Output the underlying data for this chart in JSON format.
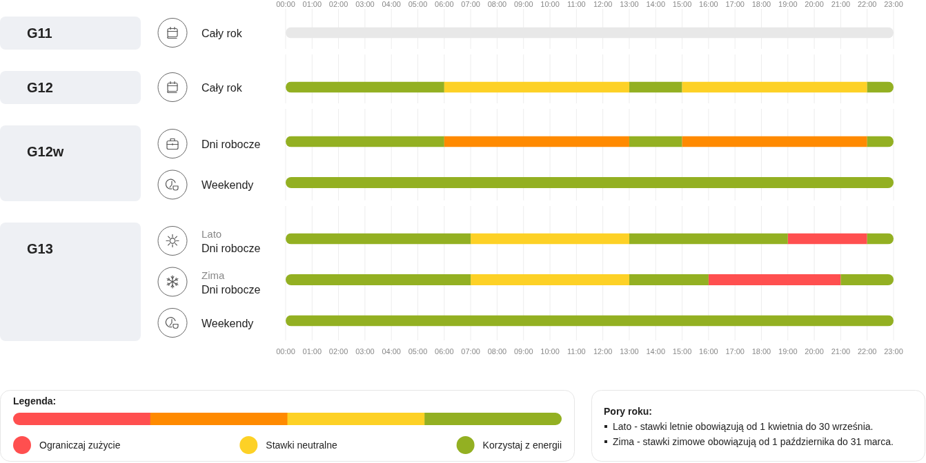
{
  "chart_data": [
    {
      "type": "bar",
      "orientation": "horizontal",
      "ylabel": "G11",
      "categories": [
        "Cały rok"
      ],
      "series": [
        {
          "color": "#e8e8e8",
          "values": [
            23
          ],
          "base": [
            0
          ]
        }
      ],
      "xlim": [
        0,
        23
      ],
      "x2lim": [
        0,
        23
      ],
      "x2ticks": [
        {
          "value": 0,
          "label": "00:00"
        },
        {
          "value": 1,
          "label": "01:00"
        },
        {
          "value": 2,
          "label": "02:00"
        },
        {
          "value": 3,
          "label": "03:00"
        },
        {
          "value": 4,
          "label": "04:00"
        },
        {
          "value": 5,
          "label": "05:00"
        },
        {
          "value": 6,
          "label": "06:00"
        },
        {
          "value": 7,
          "label": "07:00"
        },
        {
          "value": 8,
          "label": "08:00"
        },
        {
          "value": 9,
          "label": "09:00"
        },
        {
          "value": 10,
          "label": "10:00"
        },
        {
          "value": 11,
          "label": "11:00"
        },
        {
          "value": 12,
          "label": "12:00"
        },
        {
          "value": 13,
          "label": "13:00"
        },
        {
          "value": 14,
          "label": "14:00"
        },
        {
          "value": 15,
          "label": "15:00"
        },
        {
          "value": 16,
          "label": "16:00"
        },
        {
          "value": 17,
          "label": "17:00"
        },
        {
          "value": 18,
          "label": "18:00"
        },
        {
          "value": 19,
          "label": "19:00"
        },
        {
          "value": 20,
          "label": "20:00"
        },
        {
          "value": 21,
          "label": "21:00"
        },
        {
          "value": 22,
          "label": "22:00"
        },
        {
          "value": 23,
          "label": "23:00"
        }
      ],
      "grid": true
    },
    {
      "type": "bar",
      "orientation": "horizontal",
      "ylabel": "G12",
      "categories": [
        "Cały rok"
      ],
      "series": [
        {
          "color": "#93b022",
          "values": [
            6
          ],
          "base": [
            0
          ]
        },
        {
          "color": "#fdd126",
          "values": [
            7
          ],
          "base": [
            6
          ]
        },
        {
          "color": "#93b022",
          "values": [
            2
          ],
          "base": [
            13
          ]
        },
        {
          "color": "#fdd126",
          "values": [
            7
          ],
          "base": [
            15
          ]
        },
        {
          "color": "#93b022",
          "values": [
            1
          ],
          "base": [
            22
          ]
        }
      ],
      "xlim": [
        0,
        23
      ],
      "tick_labels": "y",
      "grid": "x"
    },
    {
      "type": "bar",
      "orientation": "horizontal",
      "ylabel": "G12w",
      "categories": [
        "Dni robocze",
        "Weekendy"
      ],
      "series": [
        {
          "color": "#93b022",
          "values": [
            6,
            23
          ],
          "base": [
            0,
            0
          ]
        },
        {
          "color": "#ff8a00",
          "values": [
            7,
            null
          ],
          "base": [
            6,
            null
          ]
        },
        {
          "color": "#93b022",
          "values": [
            2,
            null
          ],
          "base": [
            13,
            null
          ]
        },
        {
          "color": "#ff8a00",
          "values": [
            7,
            null
          ],
          "base": [
            15,
            null
          ]
        },
        {
          "color": "#93b022",
          "values": [
            1,
            null
          ],
          "base": [
            22,
            null
          ]
        }
      ],
      "xlim": [
        0,
        23
      ],
      "tick_labels": "y",
      "grid": "x"
    },
    {
      "type": "bar",
      "orientation": "horizontal",
      "ylabel": "G13",
      "categories": [
        "Lato\nDni robocze",
        "Zima\nDni robocze",
        "Weekendy"
      ],
      "series": [
        {
          "name": "Ograniczaj zużycie",
          "color": "#ff4f4f",
          "values": [
            3,
            5,
            null
          ],
          "base": [
            19,
            16,
            null
          ]
        },
        {
          "name": "Stawki neutralne",
          "color": "#fdd126",
          "values": [
            6,
            6,
            null
          ],
          "base": [
            7,
            7,
            null
          ]
        },
        {
          "name": "Korzystaj z energii",
          "color": "#93b022",
          "values": [
            7,
            7,
            23
          ],
          "base": [
            0,
            0,
            0
          ]
        },
        {
          "color": "#93b022",
          "values": [
            6,
            3,
            null
          ],
          "base": [
            13,
            13,
            null
          ]
        },
        {
          "color": "#93b022",
          "values": [
            1,
            2,
            null
          ],
          "base": [
            22,
            21,
            null
          ]
        }
      ],
      "xlim": [
        0,
        23
      ],
      "xticks": [
        {
          "value": 0,
          "label": "00:00"
        },
        {
          "value": 1,
          "label": "01:00"
        },
        {
          "value": 2,
          "label": "02:00"
        },
        {
          "value": 3,
          "label": "03:00"
        },
        {
          "value": 4,
          "label": "04:00"
        },
        {
          "value": 5,
          "label": "05:00"
        },
        {
          "value": 6,
          "label": "06:00"
        },
        {
          "value": 7,
          "label": "07:00"
        },
        {
          "value": 8,
          "label": "08:00"
        },
        {
          "value": 9,
          "label": "09:00"
        },
        {
          "value": 10,
          "label": "10:00"
        },
        {
          "value": 11,
          "label": "11:00"
        },
        {
          "value": 12,
          "label": "12:00"
        },
        {
          "value": 13,
          "label": "13:00"
        },
        {
          "value": 14,
          "label": "14:00"
        },
        {
          "value": 15,
          "label": "15:00"
        },
        {
          "value": 16,
          "label": "16:00"
        },
        {
          "value": 17,
          "label": "17:00"
        },
        {
          "value": 18,
          "label": "18:00"
        },
        {
          "value": 19,
          "label": "19:00"
        },
        {
          "value": 20,
          "label": "20:00"
        },
        {
          "value": 21,
          "label": "21:00"
        },
        {
          "value": 22,
          "label": "22:00"
        },
        {
          "value": 23,
          "label": "23:00"
        }
      ],
      "grid": "x",
      "legend": "bottom",
      "legend_title": "Legenda:",
      "annotations": [
        "Pory roku:",
        "Lato - stawki letnie obowiązują od 1 kwietnia do 30 września.",
        "Zima - stawki zimowe obowiązują od 1 października do 31 marca."
      ]
    }
  ]
}
